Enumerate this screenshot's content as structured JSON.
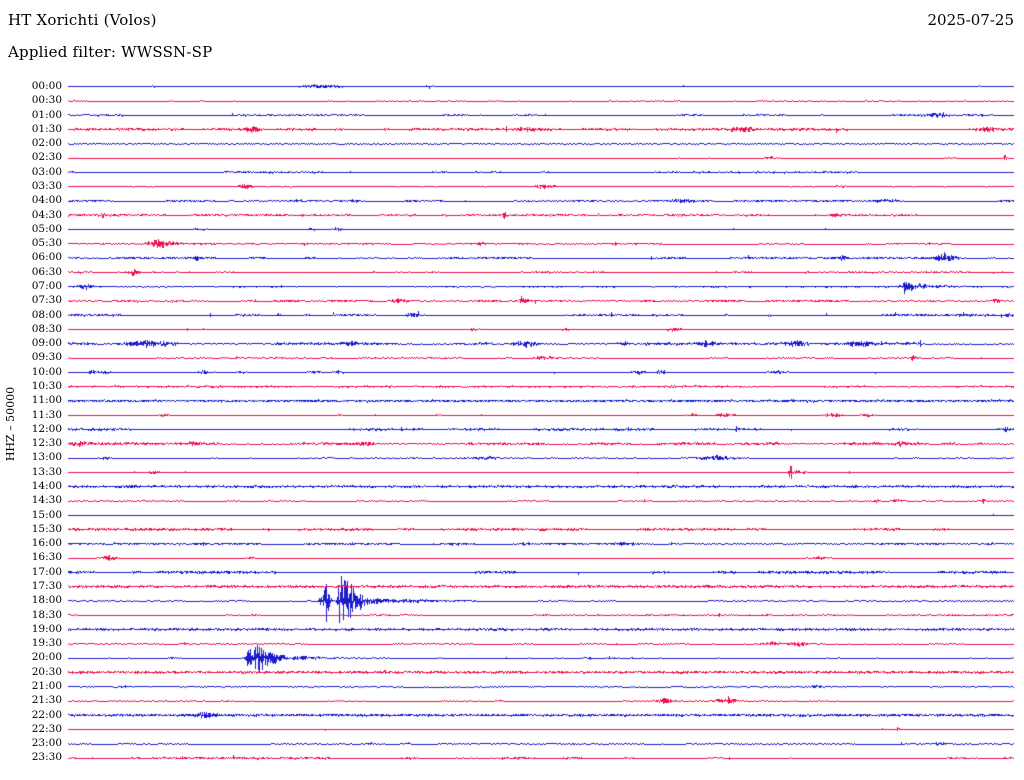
{
  "header": {
    "station": "HT Xorichti (Volos)",
    "date": "2025-07-25",
    "filter_label": "Applied filter: WWSSN-SP"
  },
  "y_axis_label": "HHZ – 50000",
  "colors": {
    "trace_blue": "#1c1ccd",
    "trace_red": "#ee1150",
    "background": "#ffffff",
    "text": "#000000"
  },
  "chart_data": {
    "type": "helicorder",
    "title": "HT Xorichti (Volos)",
    "date": "2025-07-25",
    "filter": "WWSSN-SP",
    "channel": "HHZ",
    "scale": 50000,
    "row_duration_minutes": 30,
    "first_row": "00:00",
    "last_row": "23:30",
    "color_rule": "hour rows blue, half-hour rows red",
    "rows": [
      {
        "t": "00:00",
        "c": "b",
        "n": 0.7,
        "e": [
          [
            0.09,
            1.2,
            4
          ],
          [
            0.266,
            1.8,
            12
          ],
          [
            0.382,
            2.2,
            3
          ]
        ]
      },
      {
        "t": "00:30",
        "c": "r",
        "n": 0.35,
        "e": [
          [
            0.14,
            1.0,
            2
          ]
        ]
      },
      {
        "t": "01:00",
        "c": "b",
        "n": 1.0,
        "e": [
          [
            0.916,
            2.6,
            10
          ]
        ]
      },
      {
        "t": "01:30",
        "c": "r",
        "n": 1.3,
        "e": [
          [
            0.192,
            3.0,
            8
          ],
          [
            0.483,
            2.2,
            6
          ],
          [
            0.713,
            3.0,
            7
          ],
          [
            0.97,
            2.2,
            6
          ]
        ]
      },
      {
        "t": "02:00",
        "c": "b",
        "n": 0.25,
        "f": true,
        "e": []
      },
      {
        "t": "02:30",
        "c": "r",
        "n": 0.35,
        "e": [
          [
            0.742,
            1.5,
            4
          ],
          [
            0.932,
            1.5,
            4
          ],
          [
            0.99,
            4.2,
            1.5
          ]
        ]
      },
      {
        "t": "03:00",
        "c": "b",
        "n": 1.0,
        "e": []
      },
      {
        "t": "03:30",
        "c": "r",
        "n": 0.7,
        "e": [
          [
            0.187,
            2.0,
            6
          ],
          [
            0.504,
            2.0,
            7
          ],
          [
            0.816,
            1.5,
            5
          ]
        ]
      },
      {
        "t": "04:00",
        "c": "b",
        "n": 1.1,
        "e": [
          [
            0.3,
            1.8,
            6
          ],
          [
            0.65,
            1.8,
            6
          ],
          [
            0.869,
            2.2,
            8
          ]
        ]
      },
      {
        "t": "04:30",
        "c": "r",
        "n": 1.1,
        "e": [
          [
            0.036,
            2.8,
            2
          ],
          [
            0.462,
            4.2,
            1.5
          ],
          [
            0.81,
            2.0,
            5
          ]
        ]
      },
      {
        "t": "05:00",
        "c": "b",
        "n": 0.6,
        "e": [
          [
            0.14,
            1.5,
            4
          ],
          [
            0.259,
            2.0,
            4
          ],
          [
            0.284,
            2.0,
            4
          ]
        ]
      },
      {
        "t": "05:30",
        "c": "r",
        "n": 0.9,
        "e": [
          [
            0.102,
            6.0,
            12,
            12
          ],
          [
            0.436,
            1.5,
            4
          ]
        ]
      },
      {
        "t": "06:00",
        "c": "b",
        "n": 1.2,
        "e": [
          [
            0.136,
            2.2,
            2
          ],
          [
            0.818,
            3.0,
            2
          ],
          [
            0.927,
            6.0,
            6,
            8
          ]
        ]
      },
      {
        "t": "06:30",
        "c": "r",
        "n": 0.9,
        "e": [
          [
            0.071,
            4.5,
            6,
            6
          ],
          [
            0.504,
            1.5,
            4
          ]
        ]
      },
      {
        "t": "07:00",
        "c": "b",
        "n": 1.0,
        "e": [
          [
            0.018,
            2.0,
            5
          ],
          [
            0.885,
            8.0,
            2.5,
            12
          ],
          [
            0.9,
            3.0,
            6,
            14
          ]
        ]
      },
      {
        "t": "07:30",
        "c": "r",
        "n": 1.3,
        "e": [
          [
            0.349,
            2.5,
            6
          ],
          [
            0.481,
            2.5,
            6
          ],
          [
            0.98,
            2.0,
            4
          ]
        ]
      },
      {
        "t": "08:00",
        "c": "b",
        "n": 1.2,
        "e": [
          [
            0.222,
            3.0,
            1.5
          ],
          [
            0.364,
            2.8,
            5
          ],
          [
            0.994,
            2.5,
            3
          ]
        ]
      },
      {
        "t": "08:30",
        "c": "r",
        "n": 0.7,
        "e": [
          [
            0.43,
            1.8,
            5
          ],
          [
            0.525,
            2.0,
            4
          ],
          [
            0.64,
            2.0,
            8
          ]
        ]
      },
      {
        "t": "09:00",
        "c": "b",
        "n": 1.4,
        "e": [
          [
            0.085,
            2.8,
            15
          ],
          [
            0.298,
            2.0,
            5
          ],
          [
            0.483,
            4.0,
            10
          ],
          [
            0.587,
            2.8,
            7
          ],
          [
            0.676,
            2.4,
            6
          ],
          [
            0.771,
            2.8,
            7
          ],
          [
            0.837,
            2.8,
            6
          ]
        ]
      },
      {
        "t": "09:30",
        "c": "r",
        "n": 0.8,
        "e": [
          [
            0.502,
            2.4,
            7
          ],
          [
            0.893,
            2.6,
            2
          ]
        ]
      },
      {
        "t": "10:00",
        "c": "b",
        "n": 0.7,
        "e": [
          [
            0.025,
            2.4,
            3
          ],
          [
            0.041,
            2.4,
            3
          ],
          [
            0.143,
            2.4,
            4
          ],
          [
            0.184,
            2.0,
            4
          ],
          [
            0.261,
            2.0,
            4
          ],
          [
            0.285,
            2.4,
            4
          ],
          [
            0.601,
            2.0,
            5
          ],
          [
            0.626,
            2.4,
            5
          ],
          [
            0.75,
            2.4,
            8
          ]
        ]
      },
      {
        "t": "10:30",
        "c": "r",
        "n": 1.1,
        "e": []
      },
      {
        "t": "11:00",
        "c": "b",
        "n": 1.2,
        "f": true,
        "e": []
      },
      {
        "t": "11:30",
        "c": "r",
        "n": 0.5,
        "e": [
          [
            0.1,
            2.0,
            3
          ],
          [
            0.288,
            1.4,
            3
          ],
          [
            0.39,
            1.4,
            3
          ],
          [
            0.66,
            2.0,
            5
          ],
          [
            0.694,
            2.4,
            7
          ],
          [
            0.808,
            2.4,
            5
          ],
          [
            0.846,
            2.0,
            4
          ]
        ]
      },
      {
        "t": "12:00",
        "c": "b",
        "n": 1.3,
        "e": [
          [
            0.992,
            3.5,
            2
          ]
        ]
      },
      {
        "t": "12:30",
        "c": "r",
        "n": 1.4,
        "e": [
          [
            0.015,
            2.4,
            4
          ],
          [
            0.131,
            2.4,
            3
          ],
          [
            0.316,
            2.6,
            4
          ],
          [
            0.879,
            1.6,
            4
          ]
        ]
      },
      {
        "t": "13:00",
        "c": "b",
        "n": 0.6,
        "e": [
          [
            0.039,
            2.0,
            4
          ],
          [
            0.155,
            1.5,
            3
          ],
          [
            0.44,
            1.5,
            12
          ],
          [
            0.682,
            2.4,
            14
          ]
        ]
      },
      {
        "t": "13:30",
        "c": "r",
        "n": 0.6,
        "e": [
          [
            0.09,
            2.0,
            4
          ],
          [
            0.763,
            13.0,
            1.2,
            2
          ],
          [
            0.77,
            3.0,
            2,
            12
          ]
        ]
      },
      {
        "t": "14:00",
        "c": "b",
        "n": 1.2,
        "f": true,
        "e": [
          [
            0.068,
            2.0,
            1.5
          ]
        ]
      },
      {
        "t": "14:30",
        "c": "r",
        "n": 0.5,
        "e": [
          [
            0.855,
            2.6,
            2
          ],
          [
            0.877,
            2.4,
            4
          ],
          [
            0.967,
            2.6,
            1.5
          ]
        ]
      },
      {
        "t": "15:00",
        "c": "b",
        "n": 0.5,
        "e": []
      },
      {
        "t": "15:30",
        "c": "r",
        "n": 1.4,
        "e": []
      },
      {
        "t": "16:00",
        "c": "b",
        "n": 1.2,
        "e": [
          [
            0.483,
            2.4,
            4
          ],
          [
            0.594,
            2.0,
            8
          ]
        ]
      },
      {
        "t": "16:30",
        "c": "r",
        "n": 0.45,
        "e": [
          [
            0.044,
            4.5,
            5,
            6
          ],
          [
            0.192,
            1.4,
            3
          ],
          [
            0.793,
            2.0,
            6
          ]
        ]
      },
      {
        "t": "17:00",
        "c": "b",
        "n": 1.5,
        "e": []
      },
      {
        "t": "17:30",
        "c": "r",
        "n": 1.3,
        "f": true,
        "e": []
      },
      {
        "t": "18:00",
        "c": "b",
        "n": 0.6,
        "e": [
          [
            0.269,
            10.0,
            2,
            2
          ],
          [
            0.273,
            36.0,
            1.5,
            2
          ],
          [
            0.287,
            44.0,
            1.5,
            13
          ],
          [
            0.305,
            7.0,
            6,
            26
          ],
          [
            0.35,
            2.0,
            10,
            40
          ]
        ]
      },
      {
        "t": "18:30",
        "c": "r",
        "n": 0.9,
        "e": []
      },
      {
        "t": "19:00",
        "c": "b",
        "n": 1.2,
        "f": true,
        "e": []
      },
      {
        "t": "19:30",
        "c": "r",
        "n": 0.45,
        "e": [
          [
            0.122,
            1.4,
            3
          ],
          [
            0.742,
            2.4,
            8
          ],
          [
            0.772,
            2.6,
            8
          ]
        ]
      },
      {
        "t": "20:00",
        "c": "b",
        "n": 0.5,
        "e": [
          [
            0.113,
            1.4,
            3
          ],
          [
            0.191,
            16.0,
            2,
            3
          ],
          [
            0.199,
            20.0,
            2,
            11
          ],
          [
            0.215,
            8.0,
            5,
            16
          ],
          [
            0.24,
            2.5,
            8,
            30
          ],
          [
            0.55,
            1.2,
            3
          ],
          [
            0.573,
            1.4,
            3
          ]
        ]
      },
      {
        "t": "20:30",
        "c": "r",
        "n": 1.3,
        "f": true,
        "e": [
          [
            0.335,
            1.5,
            3
          ]
        ]
      },
      {
        "t": "21:00",
        "c": "b",
        "n": 0.45,
        "e": [
          [
            0.058,
            1.5,
            3
          ],
          [
            0.644,
            1.5,
            3
          ],
          [
            0.793,
            2.0,
            6
          ]
        ]
      },
      {
        "t": "21:30",
        "c": "r",
        "n": 0.45,
        "e": [
          [
            0.169,
            1.4,
            3
          ],
          [
            0.457,
            1.2,
            3
          ],
          [
            0.631,
            3.0,
            6
          ],
          [
            0.69,
            2.0,
            6
          ],
          [
            0.698,
            4.5,
            1.5,
            6
          ]
        ]
      },
      {
        "t": "22:00",
        "c": "b",
        "n": 1.3,
        "f": true,
        "e": [
          [
            0.145,
            2.4,
            8
          ]
        ]
      },
      {
        "t": "22:30",
        "c": "r",
        "n": 0.45,
        "e": [
          [
            0.876,
            2.0,
            3
          ]
        ]
      },
      {
        "t": "23:00",
        "c": "b",
        "n": 0.45,
        "e": [
          [
            0.319,
            1.4,
            3
          ],
          [
            0.358,
            1.5,
            3
          ],
          [
            0.921,
            2.0,
            6
          ]
        ]
      },
      {
        "t": "23:30",
        "c": "r",
        "n": 1.2,
        "e": []
      }
    ]
  }
}
